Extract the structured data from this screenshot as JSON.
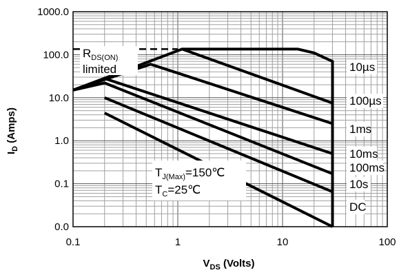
{
  "chart_data": {
    "type": "line",
    "x_scale": "log",
    "y_scale": "log",
    "xlim": [
      0.1,
      100
    ],
    "ylim": [
      0.01,
      1000
    ],
    "xlabel": {
      "main": "V",
      "sub": "DS",
      "rest": " (Volts)"
    },
    "ylabel": {
      "main": "I",
      "sub": "D",
      "rest": " (Amps)"
    },
    "x_ticks": [
      {
        "value": 0.1,
        "label": "0.1"
      },
      {
        "value": 1,
        "label": "1"
      },
      {
        "value": 10,
        "label": "10"
      },
      {
        "value": 100,
        "label": "100"
      }
    ],
    "y_ticks": [
      {
        "value": 1000,
        "label": "1000.0"
      },
      {
        "value": 100,
        "label": "100.0"
      },
      {
        "value": 10,
        "label": "10.0"
      },
      {
        "value": 1,
        "label": "1.0"
      },
      {
        "value": 0.1,
        "label": "0.1"
      },
      {
        "value": 0.01,
        "label": "0.0"
      }
    ],
    "grid": true,
    "rds_on_limit": {
      "x": [
        0.1,
        1
      ],
      "y": [
        135,
        135
      ],
      "label_main": "R",
      "label_sub": "DS(ON)",
      "label_line2": "limited"
    },
    "series": [
      {
        "name": "10µs",
        "x": [
          1.1,
          14,
          20,
          30,
          30
        ],
        "y": [
          135,
          135,
          110,
          70,
          0.01
        ]
      },
      {
        "name": "100µs",
        "x": [
          0.1,
          1.1,
          30
        ],
        "y": [
          15,
          135,
          7.5
        ]
      },
      {
        "name": "1ms",
        "x": [
          0.1,
          0.55,
          30
        ],
        "y": [
          15,
          60,
          2.5
        ]
      },
      {
        "name": "10ms",
        "x": [
          0.1,
          0.2,
          30
        ],
        "y": [
          15,
          28,
          0.5
        ]
      },
      {
        "name": "100ms",
        "x": [
          0.1,
          0.2,
          30
        ],
        "y": [
          15,
          22,
          0.17
        ]
      },
      {
        "name": "10s",
        "x": [
          0.2,
          30
        ],
        "y": [
          10,
          0.065
        ]
      },
      {
        "name": "DC",
        "x": [
          0.2,
          30
        ],
        "y": [
          4.4,
          0.01
        ]
      }
    ],
    "conditions": [
      {
        "main": "T",
        "sub": "J(Max)",
        "rest": "=150℃"
      },
      {
        "main": "T",
        "sub": "C",
        "rest": "=25℃"
      }
    ]
  },
  "colors": {
    "line": "#000000",
    "grid_major": "#555555",
    "grid_minor": "#a0a0a0",
    "background": "#ffffff"
  }
}
